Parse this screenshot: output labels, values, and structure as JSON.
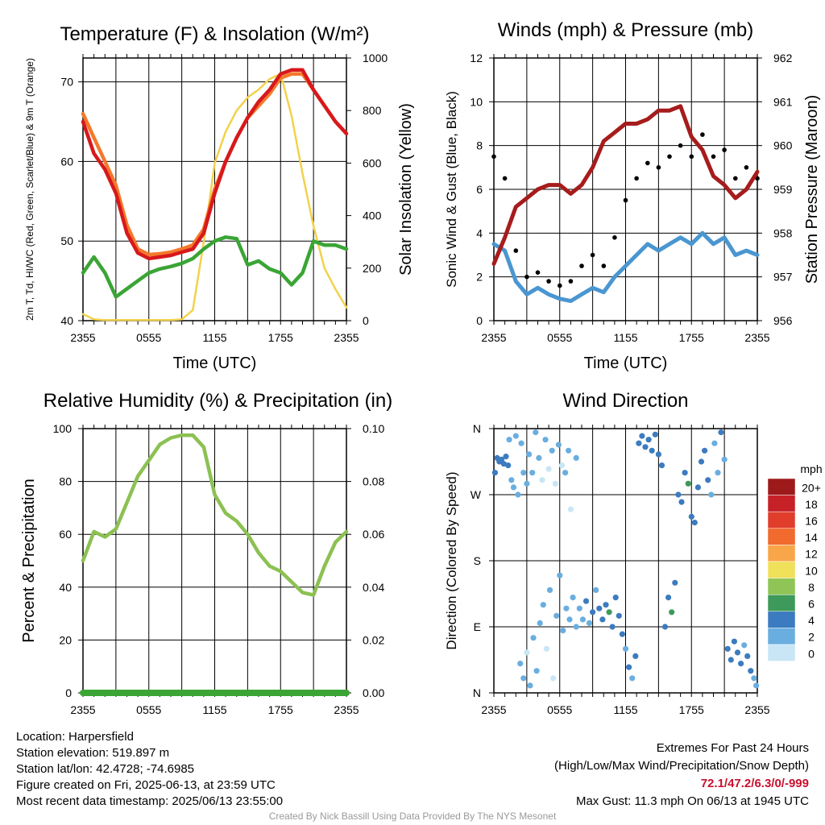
{
  "time_ticks": [
    "2355",
    "0555",
    "1155",
    "1755",
    "2355"
  ],
  "chart_data": [
    {
      "type": "line",
      "title": "Temperature (F) & Insolation (W/m²)",
      "xlabel": "Time (UTC)",
      "ylabel": "2m T, Td, HI/WC (Red, Green, Scarlet/Blue) & 9m T (Orange)",
      "ylabel_right": "Solar Insolation (Yellow)",
      "x": [
        0,
        1,
        2,
        3,
        4,
        5,
        6,
        7,
        8,
        9,
        10,
        11,
        12,
        13,
        14,
        15,
        16,
        17,
        18,
        19,
        20,
        21,
        22,
        23,
        24
      ],
      "ylim": [
        40,
        73
      ],
      "ylim_right": [
        0,
        1000
      ],
      "yticks": [
        40,
        50,
        60,
        70
      ],
      "yticks_right": [
        0,
        200,
        400,
        600,
        800,
        1000
      ],
      "series": [
        {
          "name": "2m T",
          "color": "#d7191c",
          "axis": "left",
          "values": [
            65,
            61,
            59,
            56,
            51,
            48.5,
            47.8,
            48.0,
            48.2,
            48.6,
            49,
            51,
            56,
            60,
            63,
            65.5,
            67.5,
            69,
            71,
            71.5,
            71.5,
            69,
            67,
            65,
            63.5
          ]
        },
        {
          "name": "9m T",
          "color": "#f4792b",
          "axis": "left",
          "values": [
            66,
            63,
            60,
            57,
            52,
            49,
            48.3,
            48.4,
            48.6,
            49,
            49.5,
            51.5,
            56.5,
            60,
            63,
            65.5,
            67,
            68.5,
            70.5,
            71,
            71,
            69,
            67,
            65,
            63.5
          ]
        },
        {
          "name": "Td",
          "color": "#3aa535",
          "axis": "left",
          "values": [
            46,
            48,
            46,
            43,
            44,
            45,
            46,
            46.5,
            46.8,
            47.2,
            47.8,
            49,
            50,
            50.5,
            50.3,
            47,
            47.5,
            46.5,
            46,
            44.5,
            46,
            50,
            49.5,
            49.5,
            49
          ]
        },
        {
          "name": "Solar Insolation",
          "color": "#f2d24c",
          "axis": "right",
          "values": [
            25,
            5,
            2,
            2,
            2,
            2,
            2,
            2,
            2,
            5,
            40,
            300,
            600,
            720,
            800,
            850,
            880,
            920,
            940,
            780,
            560,
            360,
            200,
            120,
            50
          ]
        }
      ]
    },
    {
      "type": "scatter",
      "title": "Winds (mph) & Pressure (mb)",
      "xlabel": "Time (UTC)",
      "ylabel": "Sonic Wind & Gust (Blue, Black)",
      "ylabel_right": "Station Pressure (Maroon)",
      "x": [
        0,
        1,
        2,
        3,
        4,
        5,
        6,
        7,
        8,
        9,
        10,
        11,
        12,
        13,
        14,
        15,
        16,
        17,
        18,
        19,
        20,
        21,
        22,
        23,
        24
      ],
      "ylim": [
        0,
        12
      ],
      "ylim_right": [
        956,
        962
      ],
      "yticks": [
        0,
        2,
        4,
        6,
        8,
        10,
        12
      ],
      "yticks_right": [
        956,
        957,
        958,
        959,
        960,
        961,
        962
      ],
      "series": [
        {
          "name": "Sonic Wind",
          "color": "#4a96d1",
          "axis": "left",
          "values": [
            3.5,
            3.2,
            1.8,
            1.2,
            1.5,
            1.2,
            1.0,
            0.9,
            1.2,
            1.5,
            1.3,
            2.0,
            2.5,
            3.0,
            3.5,
            3.2,
            3.5,
            3.8,
            3.5,
            4.0,
            3.5,
            3.8,
            3.0,
            3.2,
            3.0
          ]
        },
        {
          "name": "Gust",
          "color": "#000000",
          "axis": "left",
          "values": [
            7.5,
            6.5,
            3.2,
            2.0,
            2.2,
            1.8,
            1.6,
            1.8,
            2.5,
            3.0,
            2.5,
            3.8,
            5.5,
            6.5,
            7.2,
            7.0,
            7.5,
            8.0,
            7.5,
            8.5,
            7.5,
            7.8,
            6.5,
            7.0,
            6.5
          ]
        },
        {
          "name": "Station Pressure",
          "color": "#a61c1c",
          "axis": "right",
          "values": [
            957.3,
            957.9,
            958.6,
            958.8,
            959.0,
            959.1,
            959.1,
            958.9,
            959.1,
            959.5,
            960.1,
            960.3,
            960.5,
            960.5,
            960.6,
            960.8,
            960.8,
            960.9,
            960.2,
            959.9,
            959.3,
            959.1,
            958.8,
            959.0,
            959.4
          ]
        }
      ]
    },
    {
      "type": "line",
      "title": "Relative Humidity (%) & Precipitation (in)",
      "xlabel": "",
      "ylabel": "Percent & Precipitation",
      "x": [
        0,
        1,
        2,
        3,
        4,
        5,
        6,
        7,
        8,
        9,
        10,
        11,
        12,
        13,
        14,
        15,
        16,
        17,
        18,
        19,
        20,
        21,
        22,
        23,
        24
      ],
      "ylim": [
        0,
        100
      ],
      "ylim_right": [
        0,
        0.1
      ],
      "yticks": [
        0,
        20,
        40,
        60,
        80,
        100
      ],
      "yticks_right": [
        0.0,
        0.02,
        0.04,
        0.06,
        0.08,
        0.1
      ],
      "yticks_right_labels": [
        "0.00",
        "0.02",
        "0.04",
        "0.06",
        "0.08",
        "0.10"
      ],
      "series": [
        {
          "name": "RH",
          "color": "#8cc152",
          "axis": "left",
          "values": [
            50,
            61,
            59,
            62,
            72,
            82,
            88,
            94,
            96.5,
            97.5,
            97.5,
            93,
            75,
            68,
            65,
            60,
            53,
            48,
            46,
            42,
            38,
            37,
            48,
            57,
            61
          ]
        },
        {
          "name": "Precipitation",
          "color": "#3aa535",
          "axis": "right",
          "values": [
            0,
            0,
            0,
            0,
            0,
            0,
            0,
            0,
            0,
            0,
            0,
            0,
            0,
            0,
            0,
            0,
            0,
            0,
            0,
            0,
            0,
            0,
            0,
            0,
            0
          ]
        }
      ]
    },
    {
      "type": "scatter",
      "title": "Wind Direction",
      "xlabel": "",
      "ylabel": "Direction (Colored By Speed)",
      "ylim": [
        0,
        360
      ],
      "yticks": [
        0,
        90,
        180,
        270,
        360
      ],
      "ytick_labels": [
        "N",
        "E",
        "S",
        "W",
        "N"
      ],
      "legend_title": "mph",
      "legend_labels": [
        "20+",
        "18",
        "16",
        "14",
        "12",
        "10",
        "8",
        "6",
        "4",
        "2",
        "0"
      ],
      "legend_colors": [
        "#9e1a1a",
        "#c62127",
        "#e03d2b",
        "#f16a2e",
        "#f9a64a",
        "#f0e05a",
        "#8fc556",
        "#3d9a5a",
        "#3c7bbf",
        "#6aaee0",
        "#c8e6f5"
      ],
      "points": [
        {
          "x": 0.1,
          "dir": 300,
          "speed": 3.5
        },
        {
          "x": 0.3,
          "dir": 320,
          "speed": 4.0
        },
        {
          "x": 0.5,
          "dir": 315,
          "speed": 3.8
        },
        {
          "x": 0.7,
          "dir": 318,
          "speed": 4.2
        },
        {
          "x": 0.9,
          "dir": 312,
          "speed": 3.6
        },
        {
          "x": 1.1,
          "dir": 322,
          "speed": 3.2
        },
        {
          "x": 1.3,
          "dir": 310,
          "speed": 3.0
        },
        {
          "x": 1.4,
          "dir": 345,
          "speed": 2.5
        },
        {
          "x": 1.6,
          "dir": 290,
          "speed": 2.2
        },
        {
          "x": 1.8,
          "dir": 280,
          "speed": 1.8
        },
        {
          "x": 2.0,
          "dir": 350,
          "speed": 1.5
        },
        {
          "x": 2.2,
          "dir": 270,
          "speed": 2.0
        },
        {
          "x": 2.5,
          "dir": 340,
          "speed": 1.6
        },
        {
          "x": 2.7,
          "dir": 300,
          "speed": 1.2
        },
        {
          "x": 3.0,
          "dir": 285,
          "speed": 1.4
        },
        {
          "x": 3.2,
          "dir": 325,
          "speed": 2.4
        },
        {
          "x": 3.5,
          "dir": 300,
          "speed": 1.0
        },
        {
          "x": 3.8,
          "dir": 355,
          "speed": 1.3
        },
        {
          "x": 4.1,
          "dir": 320,
          "speed": 1.1
        },
        {
          "x": 4.4,
          "dir": 290,
          "speed": 0.8
        },
        {
          "x": 4.7,
          "dir": 345,
          "speed": 1.5
        },
        {
          "x": 5.0,
          "dir": 305,
          "speed": 0.9
        },
        {
          "x": 5.3,
          "dir": 330,
          "speed": 1.2
        },
        {
          "x": 5.6,
          "dir": 285,
          "speed": 0.7
        },
        {
          "x": 5.9,
          "dir": 338,
          "speed": 1.4
        },
        {
          "x": 6.2,
          "dir": 310,
          "speed": 0.8
        },
        {
          "x": 6.5,
          "dir": 300,
          "speed": 2.0
        },
        {
          "x": 6.8,
          "dir": 330,
          "speed": 1.6
        },
        {
          "x": 7.0,
          "dir": 250,
          "speed": 0.8
        },
        {
          "x": 7.5,
          "dir": 320,
          "speed": 1.2
        },
        {
          "x": 2.4,
          "dir": 40,
          "speed": 1.3
        },
        {
          "x": 2.7,
          "dir": 20,
          "speed": 1.1
        },
        {
          "x": 3.0,
          "dir": 55,
          "speed": 0.9
        },
        {
          "x": 3.3,
          "dir": 10,
          "speed": 1.0
        },
        {
          "x": 3.6,
          "dir": 75,
          "speed": 1.5
        },
        {
          "x": 3.9,
          "dir": 30,
          "speed": 1.2
        },
        {
          "x": 4.2,
          "dir": 95,
          "speed": 1.4
        },
        {
          "x": 4.5,
          "dir": 120,
          "speed": 1.0
        },
        {
          "x": 4.8,
          "dir": 60,
          "speed": 0.9
        },
        {
          "x": 5.1,
          "dir": 140,
          "speed": 1.1
        },
        {
          "x": 5.4,
          "dir": 20,
          "speed": 0.8
        },
        {
          "x": 5.7,
          "dir": 105,
          "speed": 1.3
        },
        {
          "x": 6.0,
          "dir": 160,
          "speed": 1.5
        },
        {
          "x": 6.3,
          "dir": 85,
          "speed": 1.2
        },
        {
          "x": 6.6,
          "dir": 115,
          "speed": 1.8
        },
        {
          "x": 6.9,
          "dir": 100,
          "speed": 2.2
        },
        {
          "x": 7.2,
          "dir": 130,
          "speed": 1.6
        },
        {
          "x": 7.5,
          "dir": 90,
          "speed": 2.5
        },
        {
          "x": 7.8,
          "dir": 115,
          "speed": 2.8
        },
        {
          "x": 8.1,
          "dir": 100,
          "speed": 2.3
        },
        {
          "x": 8.4,
          "dir": 125,
          "speed": 3.0
        },
        {
          "x": 8.7,
          "dir": 95,
          "speed": 2.6
        },
        {
          "x": 9.0,
          "dir": 110,
          "speed": 3.2
        },
        {
          "x": 9.3,
          "dir": 140,
          "speed": 2.4
        },
        {
          "x": 9.6,
          "dir": 115,
          "speed": 3.5
        },
        {
          "x": 9.9,
          "dir": 100,
          "speed": 4.0
        },
        {
          "x": 10.2,
          "dir": 120,
          "speed": 4.5
        },
        {
          "x": 10.5,
          "dir": 110,
          "speed": 5.0
        },
        {
          "x": 10.8,
          "dir": 90,
          "speed": 3.8
        },
        {
          "x": 11.1,
          "dir": 130,
          "speed": 4.2
        },
        {
          "x": 11.4,
          "dir": 105,
          "speed": 3.6
        },
        {
          "x": 11.7,
          "dir": 80,
          "speed": 3.0
        },
        {
          "x": 12.0,
          "dir": 60,
          "speed": 2.8
        },
        {
          "x": 12.3,
          "dir": 35,
          "speed": 3.5
        },
        {
          "x": 12.6,
          "dir": 20,
          "speed": 2.5
        },
        {
          "x": 12.9,
          "dir": 50,
          "speed": 3.3
        },
        {
          "x": 13.2,
          "dir": 340,
          "speed": 3.8
        },
        {
          "x": 13.5,
          "dir": 350,
          "speed": 4.0
        },
        {
          "x": 13.8,
          "dir": 335,
          "speed": 3.6
        },
        {
          "x": 14.1,
          "dir": 345,
          "speed": 4.2
        },
        {
          "x": 14.4,
          "dir": 330,
          "speed": 3.9
        },
        {
          "x": 14.7,
          "dir": 352,
          "speed": 4.4
        },
        {
          "x": 15.0,
          "dir": 325,
          "speed": 3.5
        },
        {
          "x": 15.3,
          "dir": 310,
          "speed": 3.0
        },
        {
          "x": 15.6,
          "dir": 90,
          "speed": 3.2
        },
        {
          "x": 15.9,
          "dir": 130,
          "speed": 4.8
        },
        {
          "x": 16.2,
          "dir": 110,
          "speed": 5.5
        },
        {
          "x": 16.5,
          "dir": 150,
          "speed": 3.0
        },
        {
          "x": 16.8,
          "dir": 270,
          "speed": 4.5
        },
        {
          "x": 17.1,
          "dir": 260,
          "speed": 3.8
        },
        {
          "x": 17.4,
          "dir": 300,
          "speed": 4.1
        },
        {
          "x": 17.7,
          "dir": 285,
          "speed": 5.2
        },
        {
          "x": 18.0,
          "dir": 240,
          "speed": 3.6
        },
        {
          "x": 18.3,
          "dir": 232,
          "speed": 3.9
        },
        {
          "x": 18.6,
          "dir": 280,
          "speed": 4.3
        },
        {
          "x": 18.9,
          "dir": 315,
          "speed": 3.4
        },
        {
          "x": 19.2,
          "dir": 330,
          "speed": 4.0
        },
        {
          "x": 19.5,
          "dir": 290,
          "speed": 3.1
        },
        {
          "x": 19.8,
          "dir": 270,
          "speed": 2.8
        },
        {
          "x": 20.1,
          "dir": 340,
          "speed": 2.0
        },
        {
          "x": 20.4,
          "dir": 300,
          "speed": 2.5
        },
        {
          "x": 20.7,
          "dir": 355,
          "speed": 3.0
        },
        {
          "x": 21.0,
          "dir": 318,
          "speed": 2.2
        },
        {
          "x": 21.3,
          "dir": 60,
          "speed": 3.2
        },
        {
          "x": 21.6,
          "dir": 45,
          "speed": 3.8
        },
        {
          "x": 21.9,
          "dir": 70,
          "speed": 3.5
        },
        {
          "x": 22.2,
          "dir": 55,
          "speed": 4.1
        },
        {
          "x": 22.5,
          "dir": 40,
          "speed": 3.3
        },
        {
          "x": 22.8,
          "dir": 65,
          "speed": 2.9
        },
        {
          "x": 23.1,
          "dir": 50,
          "speed": 3.6
        },
        {
          "x": 23.4,
          "dir": 30,
          "speed": 3.0
        },
        {
          "x": 23.7,
          "dir": 20,
          "speed": 2.6
        },
        {
          "x": 23.9,
          "dir": 10,
          "speed": 2.4
        }
      ]
    }
  ],
  "info": {
    "location": "Location: Harpersfield",
    "elevation": "Station elevation: 519.897 m",
    "latlon": "Station lat/lon: 42.4728; -74.6985",
    "created": "Figure created on Fri, 2025-06-13, at 23:59 UTC",
    "recent": "Most recent data timestamp: 2025/06/13 23:55:00"
  },
  "extremes": {
    "title": "Extremes For Past 24 Hours",
    "subtitle": "(High/Low/Max Wind/Precipitation/Snow Depth)",
    "values": "72.1/47.2/6.3/0/-999",
    "max_gust": "Max Gust: 11.3 mph On 06/13 at 1945 UTC"
  },
  "credit": "Created By Nick Bassill Using Data Provided By The NYS Mesonet"
}
